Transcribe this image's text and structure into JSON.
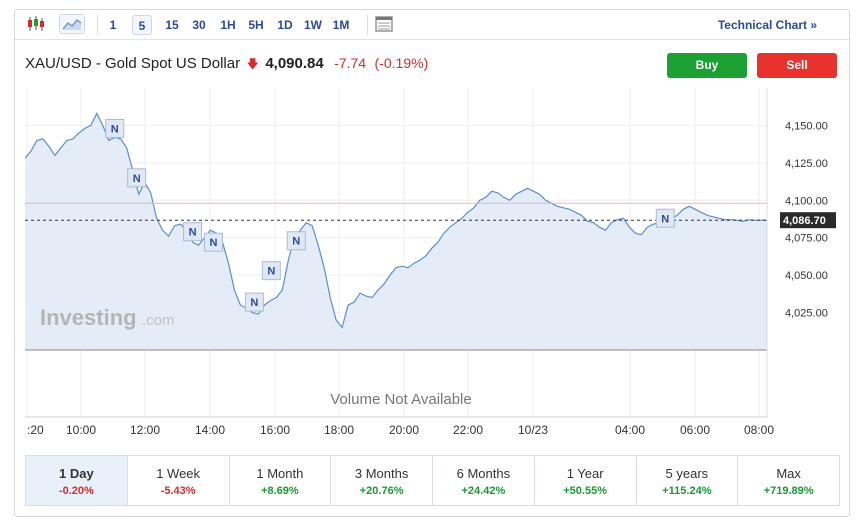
{
  "toolbar": {
    "intervals": [
      "1",
      "5",
      "15",
      "30",
      "1H",
      "5H",
      "1D",
      "1W",
      "1M"
    ],
    "selected_interval": "5",
    "technical_chart_label": "Technical Chart »"
  },
  "header": {
    "title": "XAU/USD - Gold Spot US Dollar",
    "price": "4,090.84",
    "change": "-7.74",
    "change_pct": "(-0.19%)",
    "buy_label": "Buy",
    "sell_label": "Sell"
  },
  "chart": {
    "watermark_brand": "Investing",
    "watermark_suffix": ".com",
    "current_price_label": "4,086.70",
    "volume_text": "Volume Not Available",
    "news_marker_label": "N",
    "colors": {
      "line": "#5b8fc9",
      "area": "#e3ecf7",
      "reference_line": "#f2b3b3",
      "buy": "#1aa131",
      "sell": "#e8322e"
    }
  },
  "chart_data": {
    "type": "area",
    "x_tick_labels": [
      ":20",
      "10:00",
      "12:00",
      "14:00",
      "16:00",
      "18:00",
      "20:00",
      "22:00",
      "10/23",
      "04:00",
      "06:00",
      "08:00"
    ],
    "y_tick_labels": [
      "4,150.00",
      "4,125.00",
      "4,100.00",
      "4,075.00",
      "4,050.00",
      "4,025.00"
    ],
    "ylim": [
      4000,
      4175
    ],
    "reference_price": 4098,
    "current_price": 4086.7,
    "x": [
      0,
      6,
      12,
      18,
      24,
      30,
      36,
      42,
      48,
      54,
      60,
      66,
      72,
      78,
      84,
      90,
      96,
      102,
      108,
      114,
      120,
      126,
      132,
      138,
      144,
      150,
      156,
      162,
      168,
      174,
      180,
      186,
      192,
      198,
      204,
      210,
      216,
      222,
      228,
      234,
      240,
      246,
      252,
      258,
      264,
      270,
      276,
      282,
      288,
      294,
      300,
      306,
      312,
      318,
      324,
      330,
      336,
      342,
      348,
      354,
      360,
      366,
      372,
      378,
      384,
      390,
      396,
      402,
      408,
      414,
      420,
      426,
      432,
      438,
      444,
      450,
      456,
      462,
      468,
      474,
      480,
      486,
      492,
      498,
      504,
      510,
      516,
      522,
      528,
      534,
      540,
      546,
      552,
      558,
      564,
      570,
      576,
      582,
      588,
      594,
      600,
      606,
      612,
      618,
      624,
      630,
      636,
      642,
      648,
      654,
      660,
      666,
      672,
      678,
      684,
      690,
      696,
      702,
      708,
      714,
      720,
      726,
      732,
      738,
      744
    ],
    "values": [
      4128,
      4133,
      4140,
      4141,
      4136,
      4130,
      4135,
      4140,
      4141,
      4145,
      4148,
      4150,
      4158,
      4150,
      4140,
      4142,
      4141,
      4135,
      4120,
      4104,
      4112,
      4105,
      4088,
      4080,
      4076,
      4083,
      4084,
      4080,
      4072,
      4070,
      4075,
      4080,
      4078,
      4072,
      4058,
      4040,
      4030,
      4028,
      4025,
      4024,
      4030,
      4033,
      4035,
      4040,
      4060,
      4075,
      4080,
      4085,
      4083,
      4070,
      4055,
      4035,
      4020,
      4015,
      4030,
      4032,
      4038,
      4036,
      4035,
      4040,
      4044,
      4050,
      4055,
      4056,
      4055,
      4058,
      4060,
      4063,
      4068,
      4072,
      4078,
      4082,
      4085,
      4088,
      4092,
      4095,
      4100,
      4102,
      4106,
      4105,
      4102,
      4100,
      4104,
      4106,
      4108,
      4106,
      4104,
      4100,
      4098,
      4096,
      4095,
      4094,
      4092,
      4090,
      4086,
      4085,
      4082,
      4080,
      4085,
      4087,
      4088,
      4082,
      4078,
      4077,
      4082,
      4084,
      4085,
      4086,
      4088,
      4090,
      4094,
      4096,
      4094,
      4092,
      4090,
      4089,
      4088,
      4087,
      4087,
      4086.7,
      4086,
      4087,
      4086.7,
      4086.7,
      4086.7
    ]
  },
  "periods": [
    {
      "label": "1 Day",
      "value": "-0.20%",
      "sign": "neg"
    },
    {
      "label": "1 Week",
      "value": "-5.43%",
      "sign": "neg"
    },
    {
      "label": "1 Month",
      "value": "+8.69%",
      "sign": "pos"
    },
    {
      "label": "3 Months",
      "value": "+20.76%",
      "sign": "pos"
    },
    {
      "label": "6 Months",
      "value": "+24.42%",
      "sign": "pos"
    },
    {
      "label": "1 Year",
      "value": "+50.55%",
      "sign": "pos"
    },
    {
      "label": "5 years",
      "value": "+115.24%",
      "sign": "pos"
    },
    {
      "label": "Max",
      "value": "+719.89%",
      "sign": "pos"
    }
  ]
}
